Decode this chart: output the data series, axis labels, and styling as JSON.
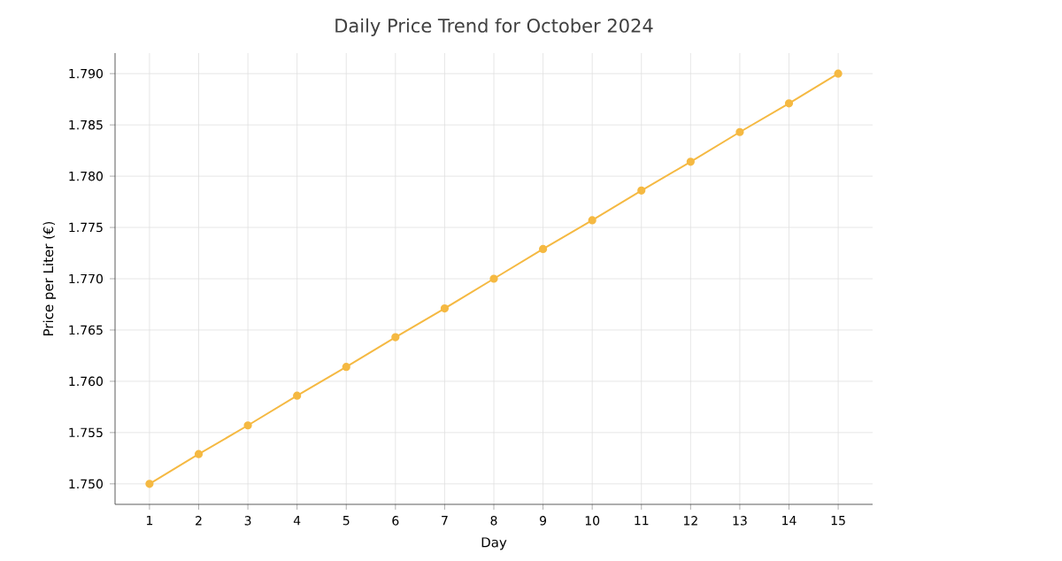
{
  "chart_data": {
    "type": "line",
    "title": "Daily Price Trend for October 2024",
    "xlabel": "Day",
    "ylabel": "Price per Liter (€)",
    "x": [
      1,
      2,
      3,
      4,
      5,
      6,
      7,
      8,
      9,
      10,
      11,
      12,
      13,
      14,
      15
    ],
    "values": [
      1.75,
      1.7529,
      1.7557,
      1.7586,
      1.7614,
      1.7643,
      1.7671,
      1.77,
      1.7729,
      1.7757,
      1.7786,
      1.7814,
      1.7843,
      1.7871,
      1.79
    ],
    "color": "#f5b942",
    "marker": "circle",
    "line_style": "solid",
    "grid": true,
    "xlim": [
      0.3,
      15.7
    ],
    "xticks": [
      1,
      2,
      3,
      4,
      5,
      6,
      7,
      8,
      9,
      10,
      11,
      12,
      13,
      14,
      15
    ],
    "ylim": [
      1.748,
      1.792
    ],
    "yticks": [
      {
        "value": 1.75,
        "label": "1.750"
      },
      {
        "value": 1.755,
        "label": "1.755"
      },
      {
        "value": 1.76,
        "label": "1.760"
      },
      {
        "value": 1.765,
        "label": "1.765"
      },
      {
        "value": 1.77,
        "label": "1.770"
      },
      {
        "value": 1.775,
        "label": "1.775"
      },
      {
        "value": 1.78,
        "label": "1.780"
      },
      {
        "value": 1.785,
        "label": "1.785"
      },
      {
        "value": 1.79,
        "label": "1.790"
      }
    ]
  }
}
